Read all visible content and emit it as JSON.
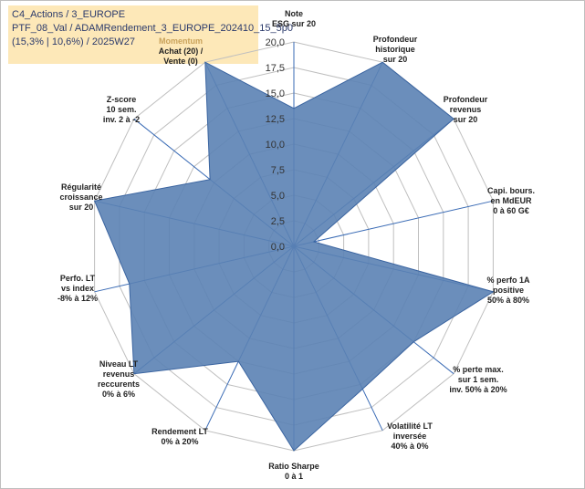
{
  "header": {
    "line1": "C4_Actions / 3_EUROPE",
    "line2": "PTF_08_Val / ADAMRendement_3_EUROPE_202410_15_5p0",
    "line3": "(15,3% | 10,6%) / 2025W27"
  },
  "colors": {
    "fill": "#5b82b4",
    "stroke": "#3a64a0",
    "grid": "#bfbfbf",
    "spoke": "#3a6bb5",
    "highlight_label": "#c9a25a"
  },
  "chart_data": {
    "type": "radar",
    "range": [
      0,
      20
    ],
    "tick_labels": [
      "0,0",
      "2,5",
      "5,0",
      "7,5",
      "10,0",
      "12,5",
      "15,0",
      "17,5",
      "20,0"
    ],
    "axes": [
      {
        "label": [
          "Note",
          "ESG sur 20"
        ],
        "value": 13.5
      },
      {
        "label": [
          "Profondeur",
          "historique",
          "sur 20"
        ],
        "value": 20
      },
      {
        "label": [
          "Profondeur",
          "revenus",
          "sur 20"
        ],
        "value": 20
      },
      {
        "label": [
          "Capi. bours.",
          "en MdEUR",
          "0 à 60 G€"
        ],
        "value": 2.0
      },
      {
        "label": [
          "% perfo 1A",
          "positive",
          "50% à 80%"
        ],
        "value": 20
      },
      {
        "label": [
          "% perte max.",
          "sur 1 sem.",
          "inv. 50% à 20%"
        ],
        "value": 15
      },
      {
        "label": [
          "Volatilité LT",
          "inversée",
          "40% à 0%"
        ],
        "value": 15.5
      },
      {
        "label": [
          "Ratio Sharpe",
          "0 à 1"
        ],
        "value": 20
      },
      {
        "label": [
          "Rendement LT",
          "0% à 20%"
        ],
        "value": 12.5
      },
      {
        "label": [
          "Niveau LT",
          "revenus",
          "reccurents",
          "0% à 6%"
        ],
        "value": 20
      },
      {
        "label": [
          "Perfo. LT",
          "vs index",
          "-8% à 12%"
        ],
        "value": 16.5
      },
      {
        "label": [
          "Régularité",
          "croissance",
          "sur 20"
        ],
        "value": 20
      },
      {
        "label": [
          "Z-score",
          "10 sem.",
          "inv. 2 à -2"
        ],
        "value": 10.5
      },
      {
        "label": [
          "Momentum",
          "Achat (20) /",
          "Vente (0)"
        ],
        "value": 20
      }
    ]
  }
}
